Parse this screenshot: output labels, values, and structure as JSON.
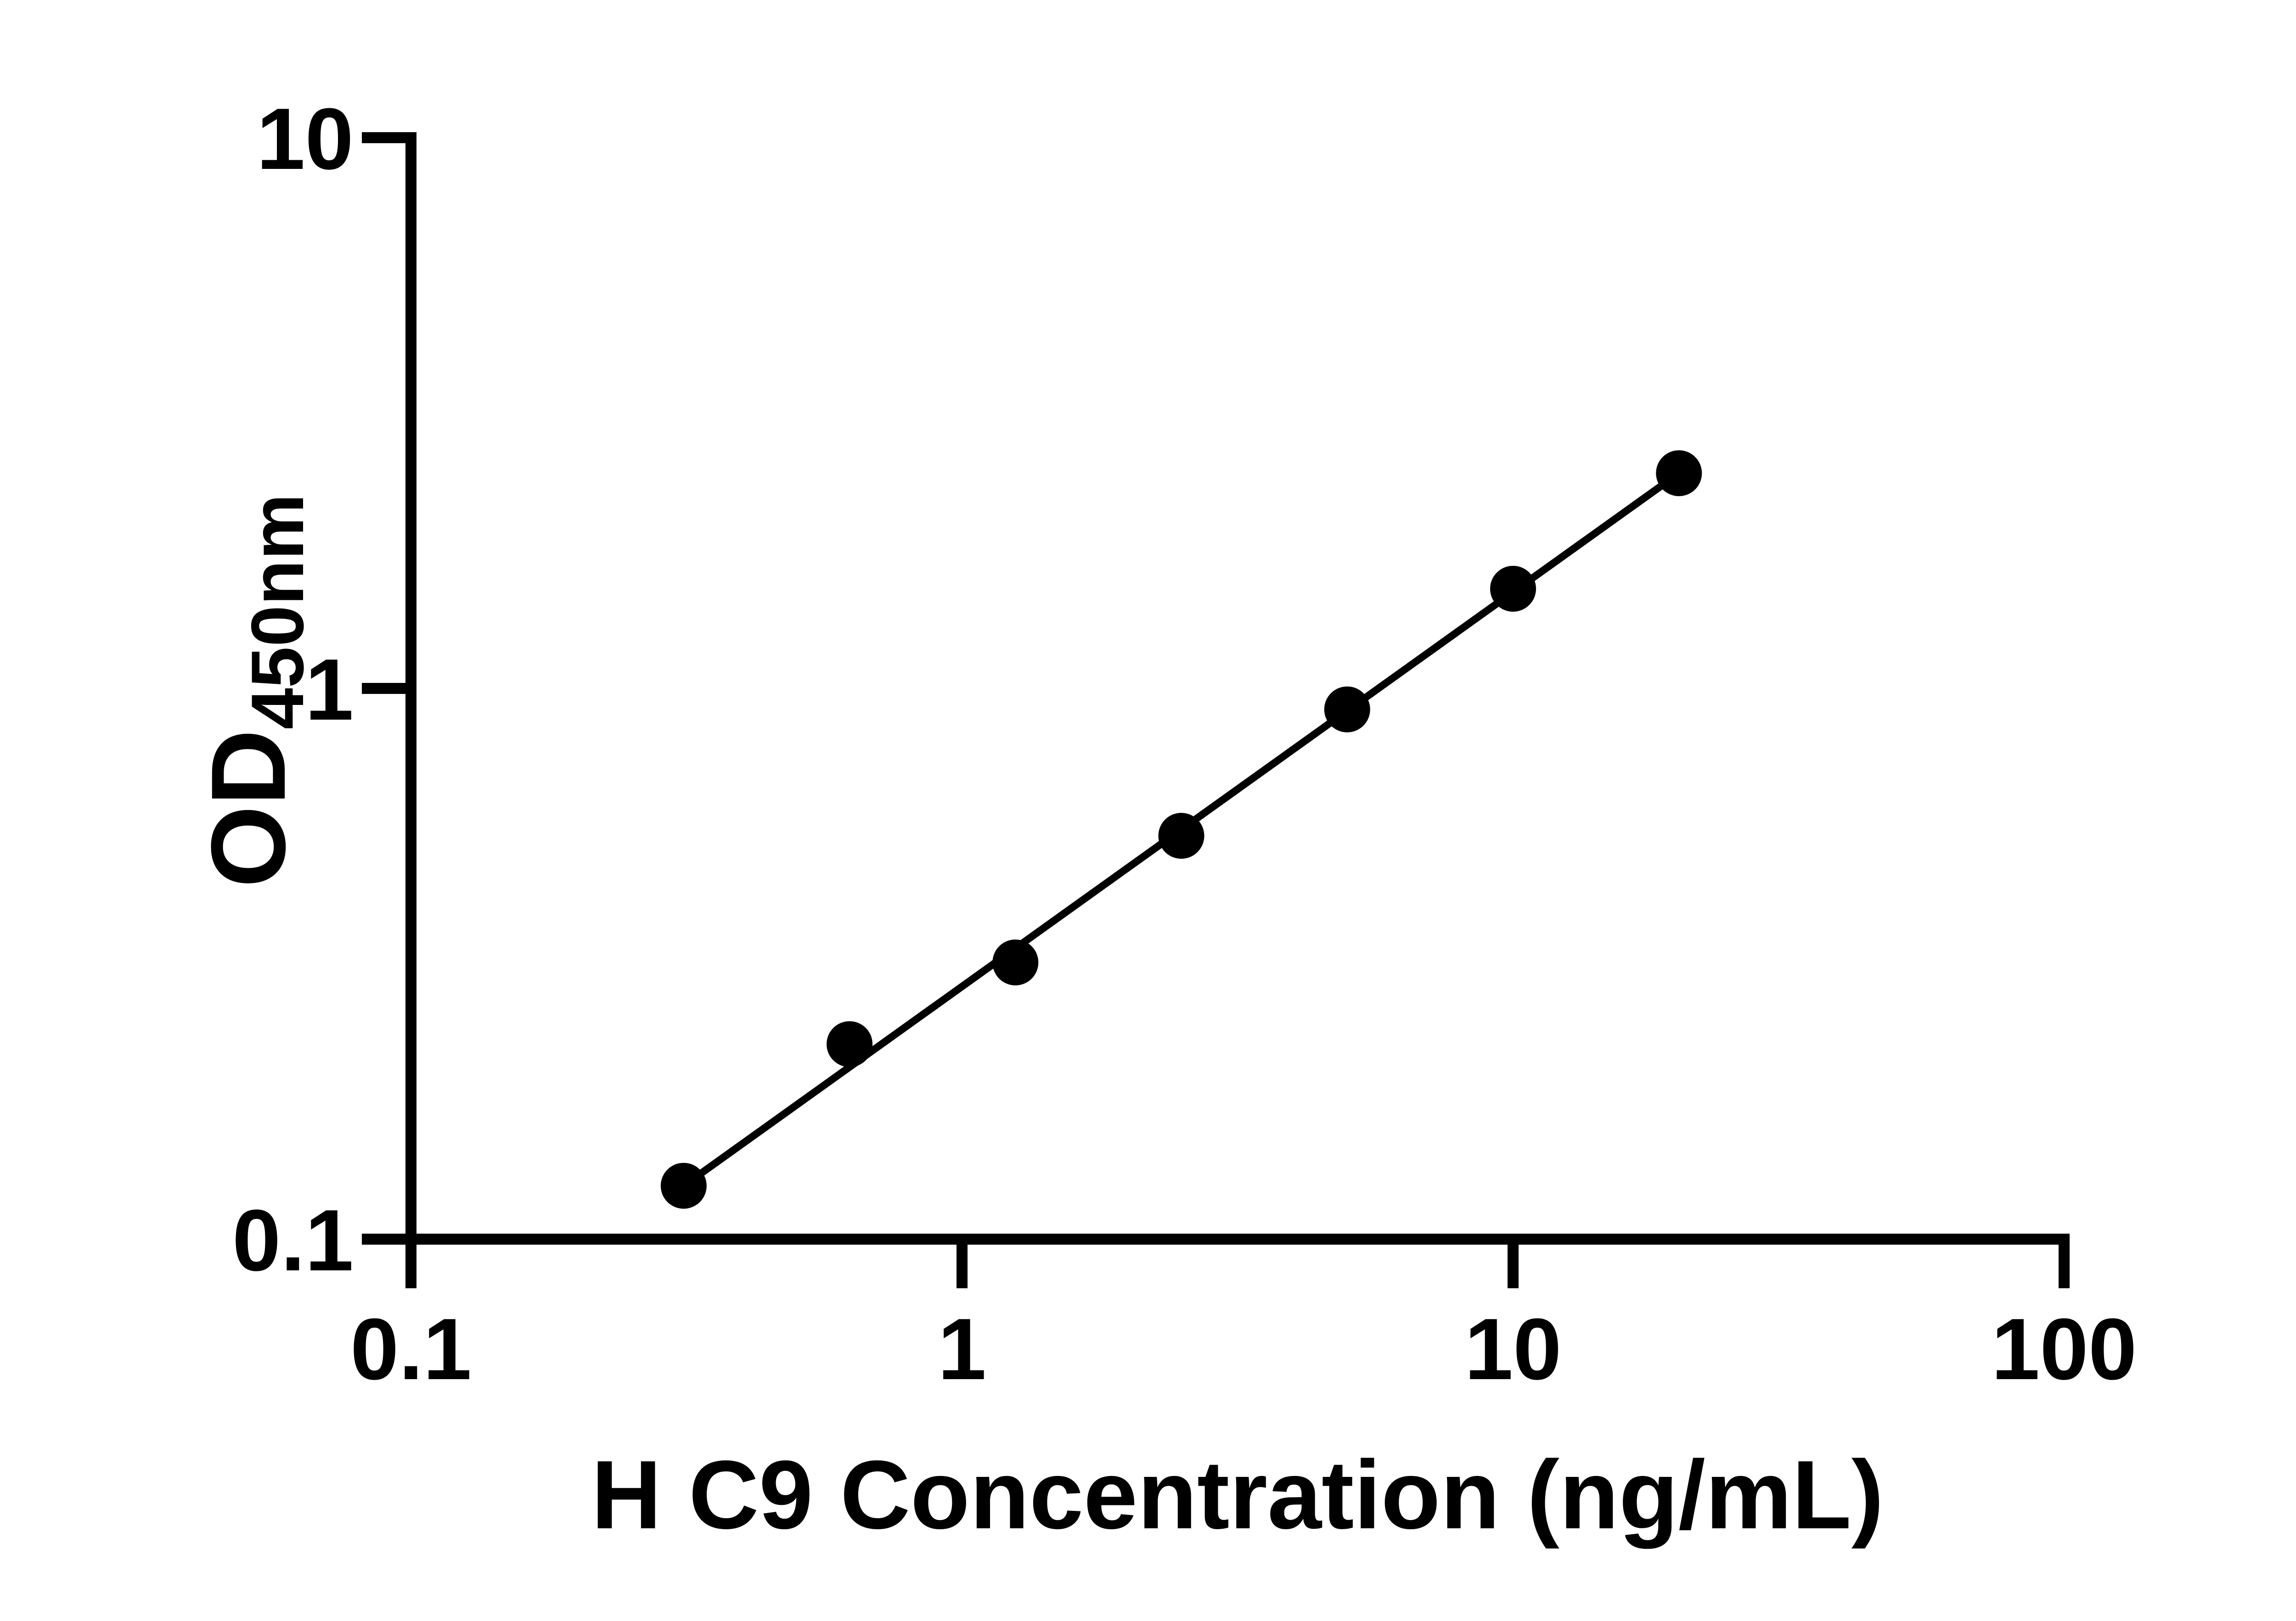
{
  "figure": {
    "background": "#ffffff",
    "ink_color": "#000000"
  },
  "chart_data": {
    "type": "scatter",
    "subtype": "line+markers",
    "title": "",
    "xlabel": "H C9 Concentration (ng/mL)",
    "ylabel": "OD450nm",
    "ylabel_main": "OD",
    "ylabel_subscript": "450nm",
    "x": [
      0.3125,
      0.625,
      1.25,
      2.5,
      5,
      10,
      20
    ],
    "y": [
      0.125,
      0.226,
      0.318,
      0.54,
      0.916,
      1.517,
      2.459
    ],
    "x_scale": "log",
    "y_scale": "log",
    "xlim": [
      0.1,
      100
    ],
    "ylim": [
      0.1,
      10
    ],
    "x_ticks": {
      "values": [
        0.1,
        1,
        10,
        100
      ],
      "labels": [
        "0.1",
        "1",
        "10",
        "100"
      ]
    },
    "y_ticks": {
      "values": [
        0.1,
        1,
        10
      ],
      "labels": [
        "0.1",
        "1",
        "10"
      ]
    },
    "grid": false,
    "legend": "none",
    "marker": {
      "shape": "circle",
      "color": "#000000"
    },
    "line": {
      "color": "#000000",
      "style": "solid"
    }
  }
}
